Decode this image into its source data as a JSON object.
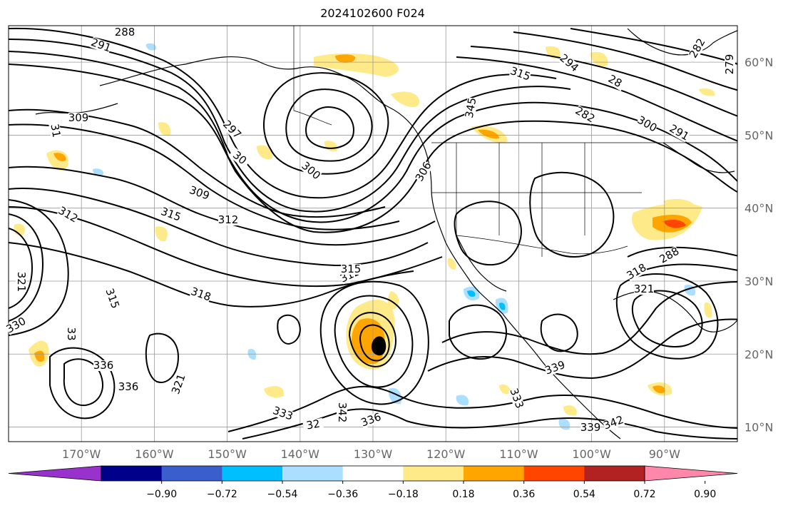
{
  "title": "2024102600 F024",
  "map": {
    "lon_range": [
      -180,
      -80
    ],
    "lat_range": [
      8,
      65
    ],
    "lon_ticks": [
      "170°W",
      "160°W",
      "150°W",
      "140°W",
      "130°W",
      "120°W",
      "110°W",
      "100°W",
      "90°W"
    ],
    "lat_ticks": [
      "60°N",
      "50°N",
      "40°N",
      "30°N",
      "20°N",
      "10°N"
    ],
    "gridlines": true,
    "contour_labels": [
      "288",
      "291",
      "309",
      "312",
      "297",
      "30",
      "300",
      "309",
      "315",
      "312",
      "321",
      "315",
      "318",
      "330",
      "336",
      "33",
      "336",
      "321",
      "333",
      "32",
      "342",
      "336",
      "339",
      "333",
      "339",
      "342",
      "345",
      "306",
      "315",
      "294",
      "28",
      "282",
      "279",
      "282",
      "300",
      "291",
      "288",
      "318",
      "321",
      "31",
      "312",
      "315"
    ],
    "fill_colors": {
      "positive_light": "#ffea8a",
      "positive_mid": "#ffa500",
      "positive_strong": "#ff4500",
      "negative_light": "#aadfff",
      "negative_mid": "#00bfff",
      "line": "#000000"
    }
  },
  "colorbar": {
    "colors": [
      "#9932cc",
      "#00008b",
      "#3a5fcd",
      "#00bfff",
      "#aadfff",
      "#ffffff",
      "#ffea8a",
      "#ffa500",
      "#ff4500",
      "#b22222",
      "#ff88aa"
    ],
    "tick_labels": [
      "−0.90",
      "−0.72",
      "−0.54",
      "−0.36",
      "−0.18",
      "0.18",
      "0.36",
      "0.54",
      "0.72",
      "0.90"
    ],
    "extend": "both"
  }
}
